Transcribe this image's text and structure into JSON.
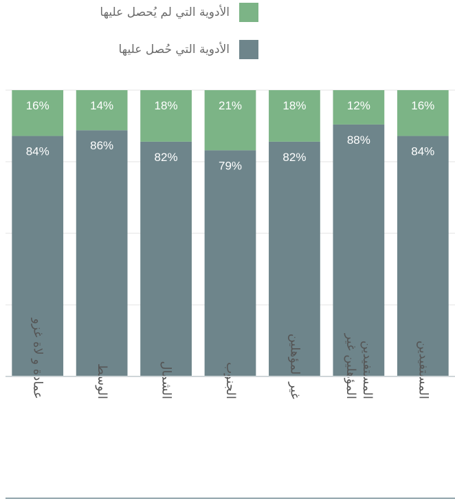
{
  "legend": {
    "items": [
      {
        "label": "الأدوية التي لم يُحصل عليها",
        "color": "#7cb486"
      },
      {
        "label": "الأدوية التي حُصل عليها",
        "color": "#6e858b"
      }
    ]
  },
  "chart_data": {
    "type": "bar",
    "stacked": true,
    "categories": [
      "عمادة و لاة غزو",
      "الوسط",
      "الشمال",
      "الجنوب",
      "غير المؤهلين",
      "المؤهلين غير المستفيدين",
      "المستفيدين"
    ],
    "category_lines": [
      [
        "عمادة و لاة غزو"
      ],
      [
        "الوسط"
      ],
      [
        "الشمال"
      ],
      [
        "الجنوب"
      ],
      [
        "غير المؤهلين"
      ],
      [
        "المؤهلين غير",
        "المستفيدين"
      ],
      [
        "المستفيدين"
      ]
    ],
    "series": [
      {
        "name": "الأدوية التي حُصل عليها",
        "values": [
          84,
          86,
          82,
          79,
          82,
          88,
          84
        ],
        "labels": [
          "84%",
          "86%",
          "82%",
          "79%",
          "82%",
          "88%",
          "84%"
        ],
        "color": "#6e858b"
      },
      {
        "name": "الأدوية التي لم يُحصل عليها",
        "values": [
          16,
          14,
          18,
          21,
          18,
          12,
          16
        ],
        "labels": [
          "16%",
          "14%",
          "18%",
          "21%",
          "18%",
          "12%",
          "16%"
        ],
        "color": "#7cb486"
      }
    ],
    "ylim": [
      0,
      100
    ],
    "grid": true,
    "legend_position": "top-right"
  }
}
